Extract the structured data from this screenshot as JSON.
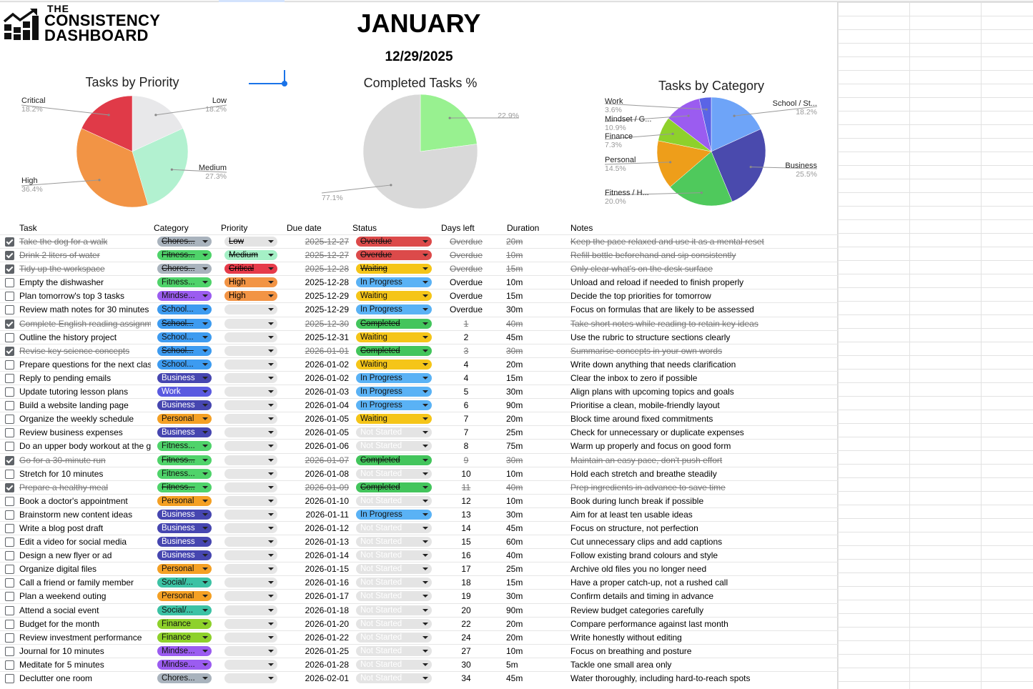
{
  "header": {
    "logo_the": "THE",
    "logo_line1": "CONSISTENCY",
    "logo_line2": "DASHBOARD",
    "month": "JANUARY",
    "date": "12/29/2025"
  },
  "charts": {
    "priority": {
      "title": "Tasks by Priority",
      "slices": [
        {
          "name": "Low",
          "pct": "18.2%",
          "value": 18.2,
          "color": "#e8e8ea"
        },
        {
          "name": "Medium",
          "pct": "27.3%",
          "value": 27.3,
          "color": "#b2f1d0"
        },
        {
          "name": "High",
          "pct": "36.4%",
          "value": 36.4,
          "color": "#f29445"
        },
        {
          "name": "Critical",
          "pct": "18.2%",
          "value": 18.2,
          "color": "#e03a48"
        }
      ]
    },
    "completed": {
      "title": "Completed Tasks %",
      "slices": [
        {
          "name": "",
          "pct": "22.9%",
          "value": 22.9,
          "color": "#98f190"
        },
        {
          "name": "",
          "pct": "77.1%",
          "value": 77.1,
          "color": "#d9d9d9"
        }
      ]
    },
    "category": {
      "title": "Tasks by Category",
      "slices": [
        {
          "name": "School / St...",
          "pct": "18.2%",
          "value": 18.2,
          "color": "#6ea4f8"
        },
        {
          "name": "Business",
          "pct": "25.5%",
          "value": 25.5,
          "color": "#4a4aad"
        },
        {
          "name": "Fitness / H...",
          "pct": "20.0%",
          "value": 20.0,
          "color": "#4fc95c"
        },
        {
          "name": "Personal",
          "pct": "14.5%",
          "value": 14.5,
          "color": "#ee9e1a"
        },
        {
          "name": "Finance",
          "pct": "7.3%",
          "value": 7.3,
          "color": "#8ed12b"
        },
        {
          "name": "Mindset / G...",
          "pct": "10.9%",
          "value": 10.9,
          "color": "#9b5cf0"
        },
        {
          "name": "Work",
          "pct": "3.6%",
          "value": 3.6,
          "color": "#5a64e6"
        }
      ]
    }
  },
  "colors": {
    "Chores": "#a9b3bd",
    "Fitness": "#4fd36a",
    "Mindset": "#9b5cf0",
    "School": "#3d9bf0",
    "Business": "#4646b0",
    "Work": "#5a5ae0",
    "Personal": "#f4a024",
    "Social": "#3cc2a4",
    "Finance": "#8ed12b",
    "Low": "#e3e3e3",
    "Medium": "#a5f0c6",
    "High": "#f29445",
    "Critical": "#e63b4a",
    "Empty": "#e6e6e6",
    "Overdue": "#dc4a4a",
    "Waiting": "#f5c518",
    "In Progress": "#5ab2f5",
    "Completed": "#43c55c",
    "Not Started": "#e4e4e4"
  },
  "table": {
    "headers": {
      "task": "Task",
      "category": "Category",
      "priority": "Priority",
      "due": "Due date",
      "status": "Status",
      "days": "Days left",
      "duration": "Duration",
      "notes": "Notes"
    },
    "rows": [
      {
        "done": true,
        "task": "Take the dog for a walk",
        "cat": "Chores...",
        "catKey": "Chores",
        "pri": "Low",
        "due": "2025-12-27",
        "status": "Overdue",
        "days": "Overdue",
        "dur": "20m",
        "notes": "Keep the pace relaxed and use it as a mental reset"
      },
      {
        "done": true,
        "task": "Drink 2 liters of water",
        "cat": "Fitness...",
        "catKey": "Fitness",
        "pri": "Medium",
        "due": "2025-12-27",
        "status": "Overdue",
        "days": "Overdue",
        "dur": "10m",
        "notes": "Refill bottle beforehand and sip consistently"
      },
      {
        "done": true,
        "task": "Tidy up the workspace",
        "cat": "Chores...",
        "catKey": "Chores",
        "pri": "Critical",
        "due": "2025-12-28",
        "status": "Waiting",
        "days": "Overdue",
        "dur": "15m",
        "notes": "Only clear what's on the desk surface"
      },
      {
        "done": false,
        "task": "Empty the dishwasher",
        "cat": "Fitness...",
        "catKey": "Fitness",
        "pri": "High",
        "due": "2025-12-28",
        "status": "In Progress",
        "days": "Overdue",
        "dur": "10m",
        "notes": "Unload and reload if needed to finish properly"
      },
      {
        "done": false,
        "task": "Plan tomorrow's top 3 tasks",
        "cat": "Mindse...",
        "catKey": "Mindset",
        "pri": "High",
        "due": "2025-12-29",
        "status": "Waiting",
        "days": "Overdue",
        "dur": "15m",
        "notes": "Decide the top priorities for tomorrow"
      },
      {
        "done": false,
        "task": "Review math notes for 30 minutes",
        "cat": "School...",
        "catKey": "School",
        "pri": "",
        "due": "2025-12-29",
        "status": "In Progress",
        "days": "Overdue",
        "dur": "30m",
        "notes": "Focus on formulas that are likely to be assessed"
      },
      {
        "done": true,
        "task": "Complete English reading assignment",
        "cat": "School...",
        "catKey": "School",
        "pri": "",
        "due": "2025-12-30",
        "status": "Completed",
        "days": "1",
        "dur": "40m",
        "notes": "Take short notes while reading to retain key ideas"
      },
      {
        "done": false,
        "task": "Outline the history project",
        "cat": "School...",
        "catKey": "School",
        "pri": "",
        "due": "2025-12-31",
        "status": "Waiting",
        "days": "2",
        "dur": "45m",
        "notes": "Use the rubric to structure sections clearly"
      },
      {
        "done": true,
        "task": "Revise key science concepts",
        "cat": "School...",
        "catKey": "School",
        "pri": "",
        "due": "2026-01-01",
        "status": "Completed",
        "days": "3",
        "dur": "30m",
        "notes": "Summarise concepts in your own words"
      },
      {
        "done": false,
        "task": "Prepare questions for the next class",
        "cat": "School...",
        "catKey": "School",
        "pri": "",
        "due": "2026-01-02",
        "status": "Waiting",
        "days": "4",
        "dur": "20m",
        "notes": "Write down anything that needs clarification"
      },
      {
        "done": false,
        "task": "Reply to pending emails",
        "cat": "Business",
        "catKey": "Business",
        "pri": "",
        "due": "2026-01-02",
        "status": "In Progress",
        "days": "4",
        "dur": "15m",
        "notes": "Clear the inbox to zero if possible"
      },
      {
        "done": false,
        "task": "Update tutoring lesson plans",
        "cat": "Work",
        "catKey": "Work",
        "pri": "",
        "due": "2026-01-03",
        "status": "In Progress",
        "days": "5",
        "dur": "30m",
        "notes": "Align plans with upcoming topics and goals"
      },
      {
        "done": false,
        "task": "Build a website landing page",
        "cat": "Business",
        "catKey": "Business",
        "pri": "",
        "due": "2026-01-04",
        "status": "In Progress",
        "days": "6",
        "dur": "90m",
        "notes": "Prioritise a clean, mobile-friendly layout"
      },
      {
        "done": false,
        "task": "Organize the weekly schedule",
        "cat": "Personal",
        "catKey": "Personal",
        "pri": "",
        "due": "2026-01-05",
        "status": "Waiting",
        "days": "7",
        "dur": "20m",
        "notes": "Block time around fixed commitments"
      },
      {
        "done": false,
        "task": "Review business expenses",
        "cat": "Business",
        "catKey": "Business",
        "pri": "",
        "due": "2026-01-05",
        "status": "Not Started",
        "days": "7",
        "dur": "25m",
        "notes": "Check for unnecessary or duplicate expenses"
      },
      {
        "done": false,
        "task": "Do an upper body workout at the gym",
        "cat": "Fitness...",
        "catKey": "Fitness",
        "pri": "",
        "due": "2026-01-06",
        "status": "Not Started",
        "days": "8",
        "dur": "75m",
        "notes": "Warm up properly and focus on good form"
      },
      {
        "done": true,
        "task": "Go for a 30-minute run",
        "cat": "Fitness...",
        "catKey": "Fitness",
        "pri": "",
        "due": "2026-01-07",
        "status": "Completed",
        "days": "9",
        "dur": "30m",
        "notes": "Maintain an easy pace, don't push effort"
      },
      {
        "done": false,
        "task": "Stretch for 10 minutes",
        "cat": "Fitness...",
        "catKey": "Fitness",
        "pri": "",
        "due": "2026-01-08",
        "status": "Not Started",
        "days": "10",
        "dur": "10m",
        "notes": "Hold each stretch and breathe steadily"
      },
      {
        "done": true,
        "task": "Prepare a healthy meal",
        "cat": "Fitness...",
        "catKey": "Fitness",
        "pri": "",
        "due": "2026-01-09",
        "status": "Completed",
        "days": "11",
        "dur": "40m",
        "notes": "Prep ingredients in advance to save time"
      },
      {
        "done": false,
        "task": "Book a doctor's appointment",
        "cat": "Personal",
        "catKey": "Personal",
        "pri": "",
        "due": "2026-01-10",
        "status": "Not Started",
        "days": "12",
        "dur": "10m",
        "notes": "Book during lunch break if possible"
      },
      {
        "done": false,
        "task": "Brainstorm new content ideas",
        "cat": "Business",
        "catKey": "Business",
        "pri": "",
        "due": "2026-01-11",
        "status": "In Progress",
        "days": "13",
        "dur": "30m",
        "notes": "Aim for at least ten usable ideas"
      },
      {
        "done": false,
        "task": "Write a blog post draft",
        "cat": "Business",
        "catKey": "Business",
        "pri": "",
        "due": "2026-01-12",
        "status": "Not Started",
        "days": "14",
        "dur": "45m",
        "notes": "Focus on structure, not perfection"
      },
      {
        "done": false,
        "task": "Edit a video for social media",
        "cat": "Business",
        "catKey": "Business",
        "pri": "",
        "due": "2026-01-13",
        "status": "Not Started",
        "days": "15",
        "dur": "60m",
        "notes": "Cut unnecessary clips and add captions"
      },
      {
        "done": false,
        "task": "Design a new flyer or ad",
        "cat": "Business",
        "catKey": "Business",
        "pri": "",
        "due": "2026-01-14",
        "status": "Not Started",
        "days": "16",
        "dur": "40m",
        "notes": "Follow existing brand colours and style"
      },
      {
        "done": false,
        "task": "Organize digital files",
        "cat": "Personal",
        "catKey": "Personal",
        "pri": "",
        "due": "2026-01-15",
        "status": "Not Started",
        "days": "17",
        "dur": "25m",
        "notes": "Archive old files you no longer need"
      },
      {
        "done": false,
        "task": "Call a friend or family member",
        "cat": "Social/...",
        "catKey": "Social",
        "pri": "",
        "due": "2026-01-16",
        "status": "Not Started",
        "days": "18",
        "dur": "15m",
        "notes": "Have a proper catch-up, not a rushed call"
      },
      {
        "done": false,
        "task": "Plan a weekend outing",
        "cat": "Personal",
        "catKey": "Personal",
        "pri": "",
        "due": "2026-01-17",
        "status": "Not Started",
        "days": "19",
        "dur": "30m",
        "notes": "Confirm details and timing in advance"
      },
      {
        "done": false,
        "task": "Attend a social event",
        "cat": "Social/...",
        "catKey": "Social",
        "pri": "",
        "due": "2026-01-18",
        "status": "Not Started",
        "days": "20",
        "dur": "90m",
        "notes": "Review budget categories carefully"
      },
      {
        "done": false,
        "task": "Budget for the month",
        "cat": "Finance",
        "catKey": "Finance",
        "pri": "",
        "due": "2026-01-20",
        "status": "Not Started",
        "days": "22",
        "dur": "20m",
        "notes": "Compare performance against last month"
      },
      {
        "done": false,
        "task": "Review investment performance",
        "cat": "Finance",
        "catKey": "Finance",
        "pri": "",
        "due": "2026-01-22",
        "status": "Not Started",
        "days": "24",
        "dur": "20m",
        "notes": "Write honestly without editing"
      },
      {
        "done": false,
        "task": "Journal for 10 minutes",
        "cat": "Mindse...",
        "catKey": "Mindset",
        "pri": "",
        "due": "2026-01-25",
        "status": "Not Started",
        "days": "27",
        "dur": "10m",
        "notes": "Focus on breathing and posture"
      },
      {
        "done": false,
        "task": "Meditate for 5 minutes",
        "cat": "Mindse...",
        "catKey": "Mindset",
        "pri": "",
        "due": "2026-01-28",
        "status": "Not Started",
        "days": "30",
        "dur": "5m",
        "notes": "Tackle one small area only"
      },
      {
        "done": false,
        "task": "Declutter one room",
        "cat": "Chores...",
        "catKey": "Chores",
        "pri": "",
        "due": "2026-02-01",
        "status": "Not Started",
        "days": "34",
        "dur": "45m",
        "notes": "Water thoroughly, including hard-to-reach spots"
      }
    ]
  }
}
